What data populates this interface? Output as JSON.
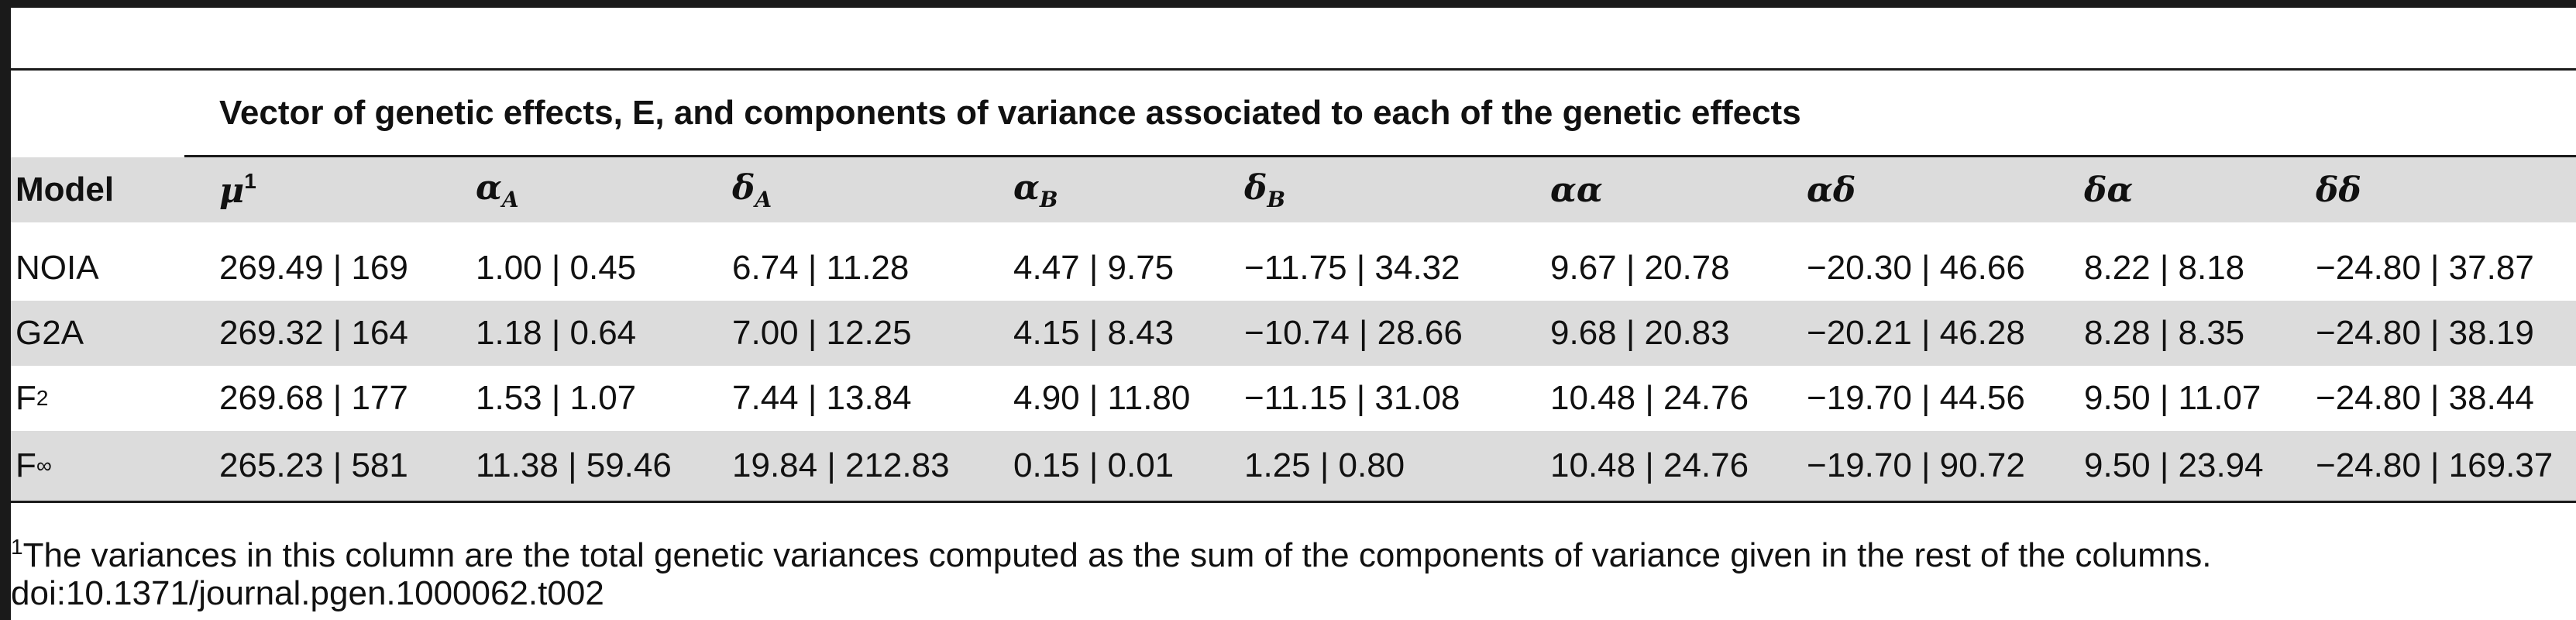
{
  "table": {
    "caption": "Vector of genetic effects, E, and components of variance associated to each of the genetic effects",
    "header": {
      "model": "Model",
      "columns": [
        {
          "base": "μ",
          "sup": "1",
          "sub": ""
        },
        {
          "base": "α",
          "sup": "",
          "sub": "A"
        },
        {
          "base": "δ",
          "sup": "",
          "sub": "A"
        },
        {
          "base": "α",
          "sup": "",
          "sub": "B"
        },
        {
          "base": "δ",
          "sup": "",
          "sub": "B"
        },
        {
          "base": "αα",
          "sup": "",
          "sub": ""
        },
        {
          "base": "αδ",
          "sup": "",
          "sub": ""
        },
        {
          "base": "δα",
          "sup": "",
          "sub": ""
        },
        {
          "base": "δδ",
          "sup": "",
          "sub": ""
        }
      ]
    },
    "rows": [
      {
        "model": "NOIA",
        "model_sub": "",
        "cells": [
          "269.49 | 169",
          "1.00 | 0.45",
          "6.74 | 11.28",
          "4.47 | 9.75",
          "−11.75 | 34.32",
          "9.67 | 20.78",
          "−20.30 | 46.66",
          "8.22 | 8.18",
          "−24.80 | 37.87"
        ]
      },
      {
        "model": "G2A",
        "model_sub": "",
        "cells": [
          "269.32 | 164",
          "1.18 | 0.64",
          "7.00 | 12.25",
          "4.15 | 8.43",
          "−10.74 | 28.66",
          "9.68 | 20.83",
          "−20.21 | 46.28",
          "8.28 | 8.35",
          "−24.80 | 38.19"
        ]
      },
      {
        "model": "F",
        "model_sub": "2",
        "cells": [
          "269.68 | 177",
          "1.53 | 1.07",
          "7.44 | 13.84",
          "4.90 | 11.80",
          "−11.15 | 31.08",
          "10.48 | 24.76",
          "−19.70 | 44.56",
          "9.50 | 11.07",
          "−24.80 | 38.44"
        ]
      },
      {
        "model": "F",
        "model_sub": "∞",
        "cells": [
          "265.23 | 581",
          "11.38 | 59.46",
          "19.84 | 212.83",
          "0.15 | 0.01",
          "1.25 | 0.80",
          "10.48 | 24.76",
          "−19.70 | 90.72",
          "9.50 | 23.94",
          "−24.80 | 169.37"
        ]
      }
    ]
  },
  "footnote": {
    "marker": "1",
    "text": "The variances in this column are the total genetic variances computed as the sum of the components of variance given in the rest of the columns."
  },
  "doi": "doi:10.1371/journal.pgen.1000062.t002"
}
